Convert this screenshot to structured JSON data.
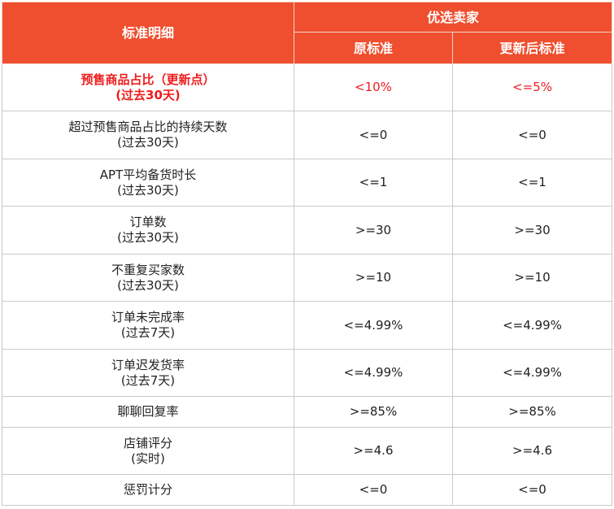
{
  "header": {
    "detail_label": "标准明细",
    "group_label": "优选卖家",
    "original_label": "原标准",
    "updated_label": "更新后标准"
  },
  "rows": [
    {
      "name_line1": "预售商品占比（更新点）",
      "name_line2": "(过去30天)",
      "original": "<10%",
      "updated": "<=5%"
    },
    {
      "name_line1": "超过预售商品占比的持续天数",
      "name_line2": "(过去30天)",
      "original": "<=0",
      "updated": "<=0"
    },
    {
      "name_line1": "APT平均备货时长",
      "name_line2": "(过去30天)",
      "original": "<=1",
      "updated": "<=1"
    },
    {
      "name_line1": "订单数",
      "name_line2": "(过去30天)",
      "original": ">=30",
      "updated": ">=30"
    },
    {
      "name_line1": "不重复买家数",
      "name_line2": "(过去30天)",
      "original": ">=10",
      "updated": ">=10"
    },
    {
      "name_line1": "订单未完成率",
      "name_line2": "(过去7天)",
      "original": "<=4.99%",
      "updated": "<=4.99%"
    },
    {
      "name_line1": "订单迟发货率",
      "name_line2": "(过去7天)",
      "original": "<=4.99%",
      "updated": "<=4.99%"
    },
    {
      "name_line1": "聊聊回复率",
      "name_line2": "",
      "original": ">=85%",
      "updated": ">=85%"
    },
    {
      "name_line1": "店铺评分",
      "name_line2": "(实时)",
      "original": ">=4.6",
      "updated": ">=4.6"
    },
    {
      "name_line1": "惩罚计分",
      "name_line2": "",
      "original": "<=0",
      "updated": "<=0"
    }
  ],
  "colors": {
    "header_bg": "#ef4f2f",
    "header_text": "#ffffff",
    "highlight_text": "#ee1c1c",
    "border": "#c9c9c9"
  }
}
